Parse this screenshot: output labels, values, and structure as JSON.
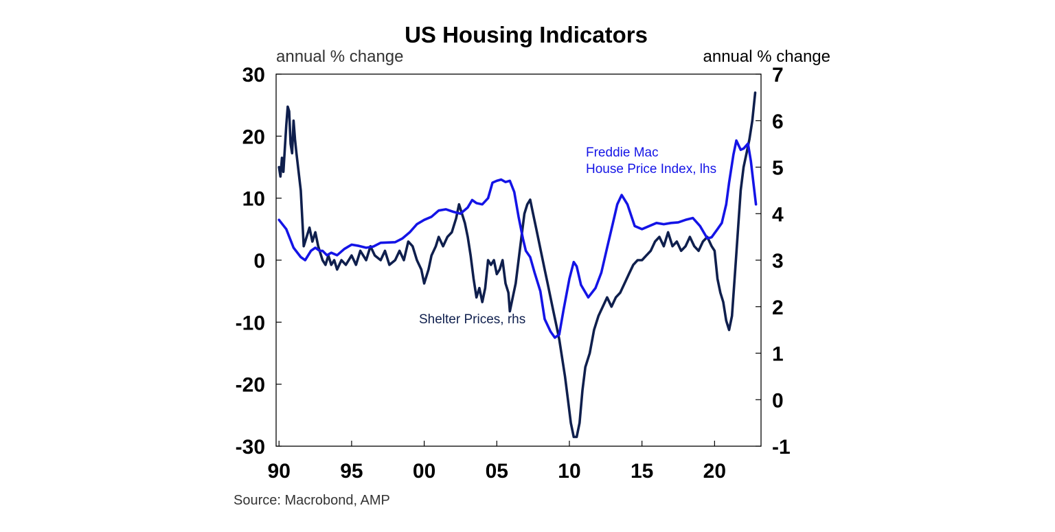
{
  "chart_data": {
    "type": "line",
    "title": "US Housing Indicators",
    "left_axis": {
      "label": "annual % change",
      "ylim": [
        -30,
        30
      ],
      "ticks": [
        30,
        20,
        10,
        0,
        -10,
        -20,
        -30
      ],
      "tick_labels": [
        "30",
        "20",
        "10",
        "0",
        "-10",
        "-20",
        "-30"
      ]
    },
    "right_axis": {
      "label": "annual % change",
      "ylim": [
        -1,
        7
      ],
      "ticks": [
        7,
        6,
        5,
        4,
        3,
        2,
        1,
        0,
        -1
      ],
      "tick_labels": [
        "7",
        "6",
        "5",
        "4",
        "3",
        "2",
        "1",
        "0",
        "-1"
      ]
    },
    "x_axis": {
      "xlim": [
        1989.8,
        2023.2
      ],
      "ticks": [
        1990,
        1995,
        2000,
        2005,
        2010,
        2015,
        2020
      ],
      "tick_labels": [
        "90",
        "95",
        "00",
        "05",
        "10",
        "15",
        "20"
      ]
    },
    "series": [
      {
        "name": "Freddie Mac House Price Index, lhs",
        "label_lines": [
          "Freddie Mac",
          "House Price Index, lhs"
        ],
        "axis": "left",
        "color": "#1414e6",
        "points": [
          [
            1990.0,
            6.5
          ],
          [
            1990.5,
            5.0
          ],
          [
            1991.0,
            2.0
          ],
          [
            1991.5,
            0.5
          ],
          [
            1991.8,
            0.0
          ],
          [
            1992.2,
            1.5
          ],
          [
            1992.5,
            2.0
          ],
          [
            1992.8,
            1.5
          ],
          [
            1993.0,
            1.5
          ],
          [
            1993.3,
            0.8
          ],
          [
            1993.6,
            1.2
          ],
          [
            1994.0,
            0.8
          ],
          [
            1994.5,
            1.8
          ],
          [
            1995.0,
            2.5
          ],
          [
            1995.5,
            2.3
          ],
          [
            1996.0,
            2.0
          ],
          [
            1996.5,
            2.2
          ],
          [
            1997.0,
            2.8
          ],
          [
            1998.0,
            2.9
          ],
          [
            1998.5,
            3.5
          ],
          [
            1999.0,
            4.5
          ],
          [
            1999.5,
            5.8
          ],
          [
            2000.0,
            6.5
          ],
          [
            2000.5,
            7.0
          ],
          [
            2001.0,
            8.0
          ],
          [
            2001.5,
            8.2
          ],
          [
            2002.0,
            7.8
          ],
          [
            2002.5,
            7.5
          ],
          [
            2003.0,
            8.5
          ],
          [
            2003.3,
            9.7
          ],
          [
            2003.6,
            9.2
          ],
          [
            2004.0,
            9.0
          ],
          [
            2004.4,
            10.0
          ],
          [
            2004.7,
            12.5
          ],
          [
            2005.0,
            12.8
          ],
          [
            2005.3,
            13.0
          ],
          [
            2005.6,
            12.6
          ],
          [
            2005.9,
            12.8
          ],
          [
            2006.2,
            11.0
          ],
          [
            2006.5,
            7.0
          ],
          [
            2006.8,
            3.5
          ],
          [
            2007.0,
            1.5
          ],
          [
            2007.3,
            0.5
          ],
          [
            2007.6,
            -2.0
          ],
          [
            2008.0,
            -5.0
          ],
          [
            2008.3,
            -9.5
          ],
          [
            2008.7,
            -11.5
          ],
          [
            2009.0,
            -12.5
          ],
          [
            2009.3,
            -12.0
          ],
          [
            2009.6,
            -8.0
          ],
          [
            2010.0,
            -3.0
          ],
          [
            2010.3,
            -0.3
          ],
          [
            2010.5,
            -1.0
          ],
          [
            2010.8,
            -4.0
          ],
          [
            2011.3,
            -6.0
          ],
          [
            2011.8,
            -4.5
          ],
          [
            2012.2,
            -2.0
          ],
          [
            2012.6,
            2.0
          ],
          [
            2013.0,
            6.0
          ],
          [
            2013.3,
            9.0
          ],
          [
            2013.6,
            10.5
          ],
          [
            2014.0,
            9.0
          ],
          [
            2014.5,
            5.5
          ],
          [
            2015.0,
            5.0
          ],
          [
            2015.5,
            5.5
          ],
          [
            2016.0,
            6.0
          ],
          [
            2016.5,
            5.8
          ],
          [
            2017.0,
            6.0
          ],
          [
            2017.5,
            6.1
          ],
          [
            2018.0,
            6.5
          ],
          [
            2018.5,
            6.8
          ],
          [
            2019.0,
            5.5
          ],
          [
            2019.5,
            3.5
          ],
          [
            2019.8,
            3.7
          ],
          [
            2020.2,
            5.0
          ],
          [
            2020.5,
            6.0
          ],
          [
            2020.8,
            9.0
          ],
          [
            2021.0,
            12.5
          ],
          [
            2021.3,
            17.0
          ],
          [
            2021.5,
            19.3
          ],
          [
            2021.8,
            17.8
          ],
          [
            2022.0,
            18.0
          ],
          [
            2022.3,
            18.8
          ],
          [
            2022.5,
            16.0
          ],
          [
            2022.7,
            12.0
          ],
          [
            2022.85,
            9.0
          ]
        ]
      },
      {
        "name": "Shelter Prices, rhs",
        "label_lines": [
          "Shelter Prices, rhs"
        ],
        "axis": "right",
        "color": "#0f1f4d",
        "points": [
          [
            1990.0,
            5.0
          ],
          [
            1990.1,
            4.8
          ],
          [
            1990.2,
            5.2
          ],
          [
            1990.3,
            4.9
          ],
          [
            1990.4,
            5.4
          ],
          [
            1990.5,
            5.9
          ],
          [
            1990.6,
            6.3
          ],
          [
            1990.7,
            6.2
          ],
          [
            1990.8,
            5.5
          ],
          [
            1990.9,
            5.3
          ],
          [
            1991.0,
            6.0
          ],
          [
            1991.1,
            5.6
          ],
          [
            1991.2,
            5.3
          ],
          [
            1991.5,
            4.5
          ],
          [
            1991.7,
            3.3
          ],
          [
            1991.9,
            3.5
          ],
          [
            1992.1,
            3.7
          ],
          [
            1992.3,
            3.4
          ],
          [
            1992.5,
            3.6
          ],
          [
            1992.7,
            3.3
          ],
          [
            1993.0,
            3.0
          ],
          [
            1993.2,
            2.9
          ],
          [
            1993.4,
            3.1
          ],
          [
            1993.6,
            2.9
          ],
          [
            1993.8,
            3.0
          ],
          [
            1994.0,
            2.8
          ],
          [
            1994.3,
            3.0
          ],
          [
            1994.6,
            2.9
          ],
          [
            1995.0,
            3.1
          ],
          [
            1995.3,
            2.9
          ],
          [
            1995.6,
            3.2
          ],
          [
            1996.0,
            3.0
          ],
          [
            1996.3,
            3.3
          ],
          [
            1996.6,
            3.1
          ],
          [
            1997.0,
            3.0
          ],
          [
            1997.3,
            3.2
          ],
          [
            1997.6,
            2.9
          ],
          [
            1998.0,
            3.0
          ],
          [
            1998.3,
            3.2
          ],
          [
            1998.6,
            3.0
          ],
          [
            1998.9,
            3.4
          ],
          [
            1999.2,
            3.3
          ],
          [
            1999.5,
            3.0
          ],
          [
            1999.8,
            2.8
          ],
          [
            2000.0,
            2.5
          ],
          [
            2000.3,
            2.8
          ],
          [
            2000.5,
            3.1
          ],
          [
            2000.8,
            3.3
          ],
          [
            2001.0,
            3.5
          ],
          [
            2001.3,
            3.3
          ],
          [
            2001.6,
            3.5
          ],
          [
            2001.9,
            3.6
          ],
          [
            2002.2,
            3.9
          ],
          [
            2002.4,
            4.2
          ],
          [
            2002.6,
            4.0
          ],
          [
            2002.8,
            3.8
          ],
          [
            2003.0,
            3.5
          ],
          [
            2003.2,
            3.1
          ],
          [
            2003.4,
            2.6
          ],
          [
            2003.6,
            2.2
          ],
          [
            2003.8,
            2.4
          ],
          [
            2004.0,
            2.1
          ],
          [
            2004.2,
            2.4
          ],
          [
            2004.4,
            3.0
          ],
          [
            2004.6,
            2.9
          ],
          [
            2004.8,
            3.0
          ],
          [
            2005.0,
            2.7
          ],
          [
            2005.2,
            2.8
          ],
          [
            2005.4,
            3.0
          ],
          [
            2005.6,
            2.5
          ],
          [
            2005.8,
            2.3
          ],
          [
            2005.9,
            1.9
          ],
          [
            2006.1,
            2.2
          ],
          [
            2006.3,
            2.5
          ],
          [
            2006.5,
            3.0
          ],
          [
            2006.7,
            3.5
          ],
          [
            2006.9,
            4.0
          ],
          [
            2007.1,
            4.2
          ],
          [
            2007.3,
            4.3
          ],
          [
            2007.5,
            4.0
          ],
          [
            2007.7,
            3.7
          ],
          [
            2007.9,
            3.4
          ],
          [
            2008.1,
            3.1
          ],
          [
            2008.3,
            2.8
          ],
          [
            2008.5,
            2.5
          ],
          [
            2008.7,
            2.2
          ],
          [
            2008.9,
            1.9
          ],
          [
            2009.1,
            1.6
          ],
          [
            2009.3,
            1.3
          ],
          [
            2009.5,
            0.9
          ],
          [
            2009.7,
            0.5
          ],
          [
            2009.9,
            0.0
          ],
          [
            2010.1,
            -0.5
          ],
          [
            2010.3,
            -0.8
          ],
          [
            2010.5,
            -0.8
          ],
          [
            2010.7,
            -0.5
          ],
          [
            2010.9,
            0.2
          ],
          [
            2011.1,
            0.7
          ],
          [
            2011.4,
            1.0
          ],
          [
            2011.7,
            1.5
          ],
          [
            2012.0,
            1.8
          ],
          [
            2012.3,
            2.0
          ],
          [
            2012.6,
            2.2
          ],
          [
            2012.9,
            2.0
          ],
          [
            2013.2,
            2.2
          ],
          [
            2013.5,
            2.3
          ],
          [
            2013.8,
            2.5
          ],
          [
            2014.1,
            2.7
          ],
          [
            2014.4,
            2.9
          ],
          [
            2014.7,
            3.0
          ],
          [
            2015.0,
            3.0
          ],
          [
            2015.3,
            3.1
          ],
          [
            2015.6,
            3.2
          ],
          [
            2015.9,
            3.4
          ],
          [
            2016.2,
            3.5
          ],
          [
            2016.5,
            3.3
          ],
          [
            2016.8,
            3.6
          ],
          [
            2017.1,
            3.3
          ],
          [
            2017.4,
            3.4
          ],
          [
            2017.7,
            3.2
          ],
          [
            2018.0,
            3.3
          ],
          [
            2018.3,
            3.5
          ],
          [
            2018.6,
            3.3
          ],
          [
            2018.9,
            3.2
          ],
          [
            2019.2,
            3.4
          ],
          [
            2019.5,
            3.5
          ],
          [
            2019.8,
            3.3
          ],
          [
            2020.0,
            3.2
          ],
          [
            2020.2,
            2.6
          ],
          [
            2020.4,
            2.3
          ],
          [
            2020.6,
            2.1
          ],
          [
            2020.8,
            1.7
          ],
          [
            2021.0,
            1.5
          ],
          [
            2021.2,
            1.8
          ],
          [
            2021.4,
            2.7
          ],
          [
            2021.6,
            3.6
          ],
          [
            2021.8,
            4.5
          ],
          [
            2022.0,
            5.0
          ],
          [
            2022.2,
            5.3
          ],
          [
            2022.4,
            5.6
          ],
          [
            2022.6,
            6.0
          ],
          [
            2022.8,
            6.6
          ]
        ]
      }
    ],
    "source": "Source: Macrobond, AMP"
  }
}
